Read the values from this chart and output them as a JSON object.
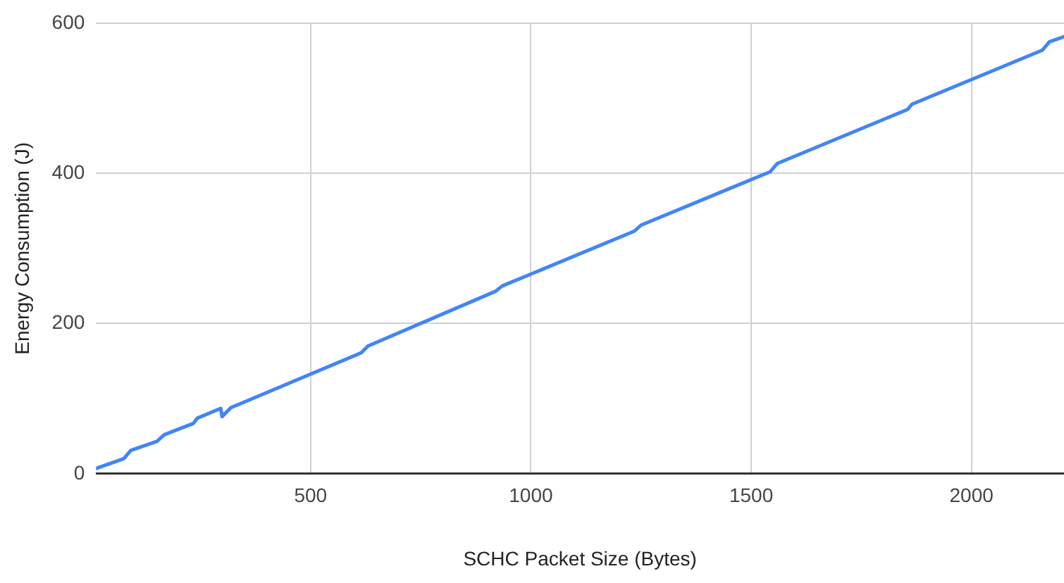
{
  "chart_data": {
    "type": "line",
    "xlabel": "SCHC Packet Size (Bytes)",
    "ylabel": "Energy Consumption (J)",
    "x": [
      13,
      76,
      92,
      151,
      168,
      234,
      243,
      296,
      299,
      319,
      615,
      630,
      920,
      935,
      1235,
      1250,
      1543,
      1559,
      1855,
      1865,
      2161,
      2177,
      2210
    ],
    "series": [
      {
        "color": "#4285f4",
        "values": [
          7,
          20,
          31,
          43,
          52,
          67,
          74,
          87,
          76,
          88,
          161,
          170,
          243,
          250,
          323,
          331,
          402,
          413,
          485,
          492,
          564,
          575,
          582
        ]
      }
    ],
    "xlim": [
      13,
      2210
    ],
    "xticks": [
      500,
      1000,
      1500,
      2000
    ],
    "ylim": [
      0,
      600
    ],
    "yticks": [
      0,
      200,
      400,
      600
    ],
    "grid": true,
    "legend": false,
    "marker": "none",
    "line_style": "solid"
  }
}
